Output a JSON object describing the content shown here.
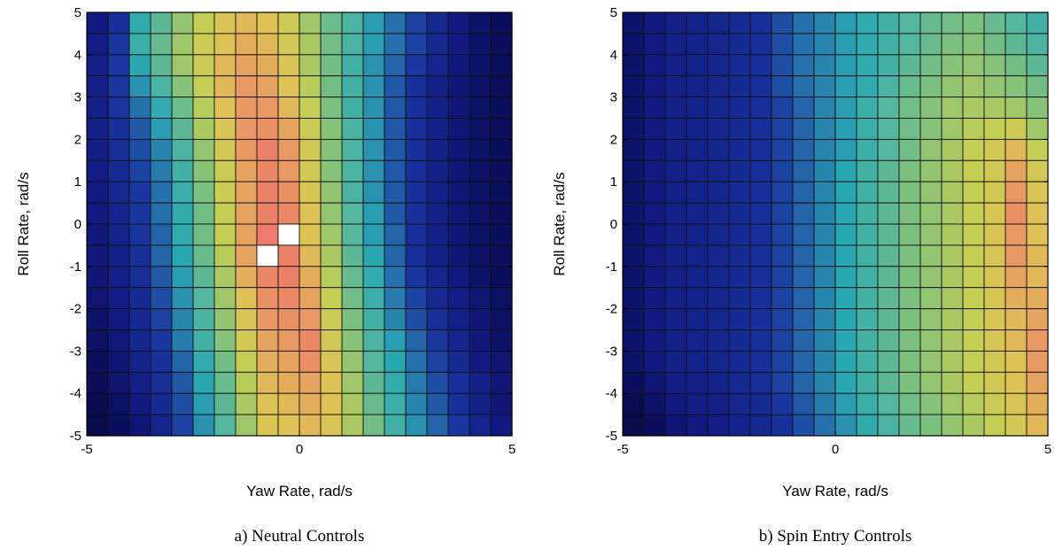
{
  "chart_data": [
    {
      "type": "heatmap",
      "caption": "a) Neutral Controls",
      "xlabel": "Yaw Rate, rad/s",
      "ylabel": "Roll Rate, rad/s",
      "xlim": [
        -5,
        5
      ],
      "ylim": [
        -5,
        5
      ],
      "x_ticks": [
        "-5",
        "0",
        "5"
      ],
      "y_ticks": [
        "5",
        "4",
        "3",
        "2",
        "1",
        "0",
        "-1",
        "-2",
        "-3",
        "-4",
        "-5"
      ],
      "grid": "20x20 cells, 0.5 rad/s each; values 0-1 (dark blue to red), null = white",
      "values": [
        [
          0.1,
          0.18,
          0.42,
          0.52,
          0.62,
          0.7,
          0.76,
          0.8,
          0.78,
          0.72,
          0.64,
          0.55,
          0.48,
          0.38,
          0.3,
          0.22,
          0.15,
          0.1,
          0.06,
          0.04
        ],
        [
          0.11,
          0.2,
          0.44,
          0.54,
          0.64,
          0.72,
          0.78,
          0.82,
          0.8,
          0.74,
          0.66,
          0.56,
          0.48,
          0.38,
          0.3,
          0.22,
          0.15,
          0.1,
          0.06,
          0.04
        ],
        [
          0.12,
          0.2,
          0.4,
          0.52,
          0.64,
          0.72,
          0.8,
          0.84,
          0.82,
          0.76,
          0.66,
          0.56,
          0.46,
          0.36,
          0.28,
          0.2,
          0.14,
          0.09,
          0.06,
          0.04
        ],
        [
          0.12,
          0.2,
          0.36,
          0.48,
          0.6,
          0.7,
          0.8,
          0.86,
          0.84,
          0.78,
          0.68,
          0.56,
          0.46,
          0.36,
          0.26,
          0.18,
          0.12,
          0.08,
          0.05,
          0.04
        ],
        [
          0.12,
          0.19,
          0.3,
          0.42,
          0.55,
          0.68,
          0.78,
          0.86,
          0.86,
          0.8,
          0.7,
          0.58,
          0.46,
          0.36,
          0.26,
          0.18,
          0.12,
          0.08,
          0.05,
          0.04
        ],
        [
          0.12,
          0.18,
          0.26,
          0.38,
          0.52,
          0.66,
          0.76,
          0.86,
          0.88,
          0.84,
          0.72,
          0.6,
          0.48,
          0.36,
          0.26,
          0.18,
          0.12,
          0.08,
          0.05,
          0.04
        ],
        [
          0.11,
          0.17,
          0.24,
          0.34,
          0.48,
          0.62,
          0.74,
          0.86,
          0.92,
          0.86,
          0.74,
          0.6,
          0.48,
          0.36,
          0.26,
          0.18,
          0.12,
          0.08,
          0.05,
          0.04
        ],
        [
          0.11,
          0.16,
          0.22,
          0.32,
          0.46,
          0.6,
          0.72,
          0.84,
          0.9,
          0.86,
          0.74,
          0.6,
          0.48,
          0.36,
          0.26,
          0.18,
          0.12,
          0.08,
          0.05,
          0.04
        ],
        [
          0.1,
          0.15,
          0.2,
          0.3,
          0.44,
          0.58,
          0.72,
          0.84,
          0.92,
          0.88,
          0.76,
          0.62,
          0.48,
          0.36,
          0.26,
          0.18,
          0.12,
          0.08,
          0.05,
          0.04
        ],
        [
          0.1,
          0.14,
          0.2,
          0.3,
          0.42,
          0.56,
          0.7,
          0.84,
          0.92,
          0.9,
          0.78,
          0.62,
          0.5,
          0.38,
          0.26,
          0.18,
          0.12,
          0.08,
          0.05,
          0.04
        ],
        [
          0.09,
          0.13,
          0.19,
          0.28,
          0.42,
          0.56,
          0.7,
          0.84,
          0.94,
          null,
          0.78,
          0.64,
          0.5,
          0.38,
          0.28,
          0.18,
          0.12,
          0.08,
          0.05,
          0.04
        ],
        [
          0.09,
          0.12,
          0.18,
          0.28,
          0.4,
          0.54,
          0.68,
          0.84,
          null,
          0.92,
          0.8,
          0.66,
          0.52,
          0.4,
          0.28,
          0.18,
          0.12,
          0.08,
          0.05,
          0.04
        ],
        [
          0.08,
          0.12,
          0.17,
          0.26,
          0.38,
          0.52,
          0.66,
          0.82,
          0.9,
          0.92,
          0.82,
          0.68,
          0.54,
          0.42,
          0.3,
          0.2,
          0.14,
          0.1,
          0.06,
          0.04
        ],
        [
          0.07,
          0.11,
          0.16,
          0.24,
          0.36,
          0.5,
          0.64,
          0.78,
          0.88,
          0.9,
          0.84,
          0.7,
          0.56,
          0.44,
          0.32,
          0.22,
          0.15,
          0.11,
          0.07,
          0.05
        ],
        [
          0.06,
          0.1,
          0.15,
          0.22,
          0.34,
          0.48,
          0.62,
          0.76,
          0.86,
          0.88,
          0.86,
          0.72,
          0.58,
          0.46,
          0.34,
          0.24,
          0.17,
          0.12,
          0.08,
          0.05
        ],
        [
          0.05,
          0.09,
          0.14,
          0.2,
          0.32,
          0.46,
          0.6,
          0.74,
          0.84,
          0.86,
          0.9,
          0.74,
          0.6,
          0.48,
          0.38,
          0.28,
          0.2,
          0.14,
          0.09,
          0.06
        ],
        [
          0.04,
          0.08,
          0.13,
          0.18,
          0.28,
          0.42,
          0.56,
          0.7,
          0.82,
          0.84,
          0.88,
          0.76,
          0.62,
          0.5,
          0.4,
          0.3,
          0.22,
          0.16,
          0.1,
          0.07
        ],
        [
          0.03,
          0.07,
          0.12,
          0.17,
          0.26,
          0.4,
          0.54,
          0.68,
          0.8,
          0.82,
          0.84,
          0.78,
          0.64,
          0.52,
          0.42,
          0.32,
          0.24,
          0.18,
          0.12,
          0.08
        ],
        [
          0.02,
          0.05,
          0.1,
          0.16,
          0.24,
          0.38,
          0.52,
          0.66,
          0.78,
          0.8,
          0.82,
          0.78,
          0.66,
          0.54,
          0.44,
          0.34,
          0.26,
          0.18,
          0.12,
          0.08
        ],
        [
          0.01,
          0.04,
          0.08,
          0.14,
          0.22,
          0.36,
          0.5,
          0.64,
          0.76,
          0.78,
          0.8,
          0.76,
          0.66,
          0.56,
          0.46,
          0.36,
          0.28,
          0.2,
          0.14,
          0.1
        ]
      ]
    },
    {
      "type": "heatmap",
      "caption": "b) Spin Entry Controls",
      "xlabel": "Yaw Rate, rad/s",
      "ylabel": "Roll Rate, rad/s",
      "xlim": [
        -5,
        5
      ],
      "ylim": [
        -5,
        5
      ],
      "x_ticks": [
        "-5",
        "0",
        "5"
      ],
      "y_ticks": [
        "5",
        "4",
        "3",
        "2",
        "1",
        "0",
        "-1",
        "-2",
        "-3",
        "-4",
        "-5"
      ],
      "grid": "20x20 cells, 0.5 rad/s each; values 0-1 (dark blue to red), null = white",
      "values": [
        [
          0.06,
          0.1,
          0.12,
          0.13,
          0.14,
          0.16,
          0.18,
          0.24,
          0.3,
          0.34,
          0.38,
          0.42,
          0.46,
          0.5,
          0.54,
          0.56,
          0.58,
          0.54,
          0.5,
          0.46
        ],
        [
          0.06,
          0.1,
          0.12,
          0.13,
          0.14,
          0.16,
          0.18,
          0.24,
          0.3,
          0.34,
          0.38,
          0.42,
          0.46,
          0.5,
          0.54,
          0.58,
          0.6,
          0.56,
          0.52,
          0.48
        ],
        [
          0.06,
          0.1,
          0.12,
          0.13,
          0.14,
          0.16,
          0.18,
          0.24,
          0.3,
          0.34,
          0.38,
          0.42,
          0.46,
          0.52,
          0.56,
          0.6,
          0.62,
          0.6,
          0.56,
          0.52
        ],
        [
          0.06,
          0.1,
          0.12,
          0.13,
          0.14,
          0.16,
          0.18,
          0.24,
          0.3,
          0.34,
          0.38,
          0.42,
          0.48,
          0.54,
          0.58,
          0.62,
          0.64,
          0.62,
          0.6,
          0.56
        ],
        [
          0.06,
          0.1,
          0.12,
          0.13,
          0.14,
          0.16,
          0.18,
          0.22,
          0.28,
          0.34,
          0.38,
          0.44,
          0.5,
          0.56,
          0.6,
          0.64,
          0.66,
          0.66,
          0.64,
          0.6
        ],
        [
          0.06,
          0.1,
          0.12,
          0.13,
          0.14,
          0.16,
          0.18,
          0.22,
          0.28,
          0.34,
          0.38,
          0.44,
          0.5,
          0.56,
          0.6,
          0.64,
          0.68,
          0.7,
          0.72,
          0.64
        ],
        [
          0.06,
          0.1,
          0.12,
          0.13,
          0.14,
          0.16,
          0.18,
          0.22,
          0.28,
          0.34,
          0.38,
          0.44,
          0.5,
          0.56,
          0.62,
          0.66,
          0.7,
          0.74,
          0.8,
          0.7
        ],
        [
          0.06,
          0.1,
          0.12,
          0.13,
          0.14,
          0.16,
          0.18,
          0.22,
          0.28,
          0.34,
          0.4,
          0.46,
          0.52,
          0.58,
          0.62,
          0.66,
          0.7,
          0.74,
          0.84,
          0.74
        ],
        [
          0.06,
          0.1,
          0.12,
          0.13,
          0.14,
          0.16,
          0.18,
          0.22,
          0.28,
          0.34,
          0.4,
          0.46,
          0.52,
          0.58,
          0.62,
          0.66,
          0.7,
          0.74,
          0.86,
          0.76
        ],
        [
          0.06,
          0.1,
          0.12,
          0.13,
          0.14,
          0.16,
          0.18,
          0.22,
          0.28,
          0.34,
          0.4,
          0.46,
          0.52,
          0.58,
          0.62,
          0.66,
          0.7,
          0.76,
          0.88,
          0.78
        ],
        [
          0.06,
          0.1,
          0.12,
          0.13,
          0.14,
          0.16,
          0.18,
          0.22,
          0.28,
          0.34,
          0.4,
          0.46,
          0.52,
          0.58,
          0.62,
          0.66,
          0.7,
          0.76,
          0.86,
          0.78
        ],
        [
          0.06,
          0.1,
          0.12,
          0.13,
          0.14,
          0.16,
          0.18,
          0.22,
          0.28,
          0.34,
          0.4,
          0.46,
          0.52,
          0.58,
          0.62,
          0.66,
          0.7,
          0.76,
          0.86,
          0.8
        ],
        [
          0.06,
          0.1,
          0.12,
          0.13,
          0.14,
          0.16,
          0.18,
          0.22,
          0.28,
          0.34,
          0.4,
          0.46,
          0.52,
          0.58,
          0.62,
          0.66,
          0.7,
          0.76,
          0.84,
          0.8
        ],
        [
          0.06,
          0.1,
          0.12,
          0.13,
          0.14,
          0.16,
          0.18,
          0.22,
          0.28,
          0.34,
          0.4,
          0.46,
          0.52,
          0.58,
          0.62,
          0.66,
          0.7,
          0.76,
          0.82,
          0.82
        ],
        [
          0.06,
          0.1,
          0.12,
          0.13,
          0.14,
          0.16,
          0.18,
          0.22,
          0.28,
          0.34,
          0.4,
          0.46,
          0.52,
          0.58,
          0.62,
          0.66,
          0.7,
          0.76,
          0.8,
          0.84
        ],
        [
          0.06,
          0.1,
          0.12,
          0.13,
          0.14,
          0.16,
          0.18,
          0.22,
          0.28,
          0.34,
          0.4,
          0.46,
          0.52,
          0.58,
          0.62,
          0.66,
          0.7,
          0.76,
          0.8,
          0.86
        ],
        [
          0.06,
          0.1,
          0.12,
          0.13,
          0.14,
          0.16,
          0.18,
          0.22,
          0.28,
          0.34,
          0.4,
          0.46,
          0.52,
          0.58,
          0.62,
          0.66,
          0.7,
          0.74,
          0.78,
          0.86
        ],
        [
          0.04,
          0.08,
          0.11,
          0.12,
          0.13,
          0.15,
          0.17,
          0.22,
          0.28,
          0.34,
          0.4,
          0.46,
          0.52,
          0.58,
          0.62,
          0.66,
          0.7,
          0.74,
          0.78,
          0.84
        ],
        [
          0.02,
          0.06,
          0.1,
          0.11,
          0.12,
          0.14,
          0.16,
          0.2,
          0.26,
          0.32,
          0.38,
          0.44,
          0.5,
          0.56,
          0.6,
          0.64,
          0.68,
          0.72,
          0.76,
          0.82
        ],
        [
          0.01,
          0.04,
          0.08,
          0.1,
          0.11,
          0.13,
          0.15,
          0.18,
          0.24,
          0.3,
          0.36,
          0.42,
          0.48,
          0.54,
          0.58,
          0.62,
          0.66,
          0.7,
          0.74,
          0.8
        ]
      ]
    }
  ]
}
